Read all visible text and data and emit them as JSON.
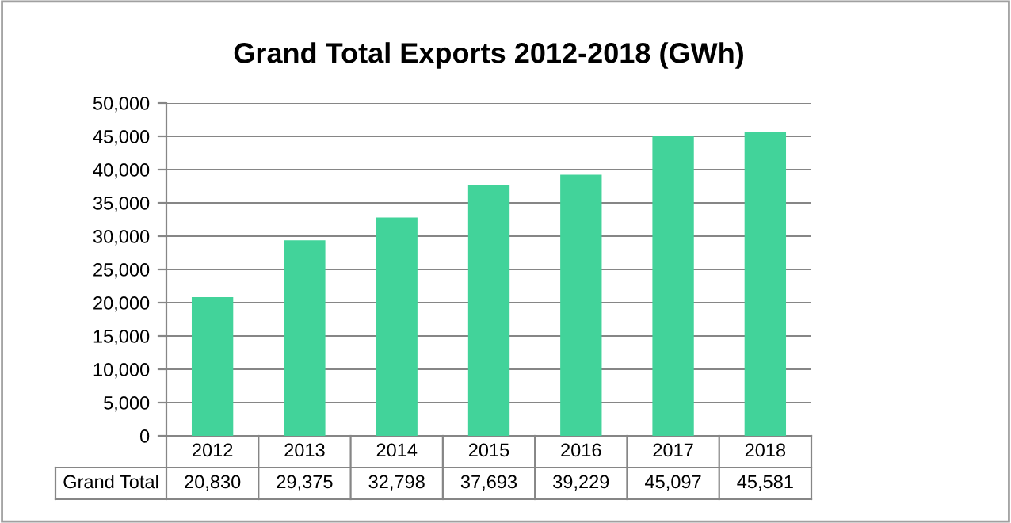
{
  "chart_data": {
    "type": "bar",
    "title": "Grand Total Exports 2012-2018 (GWh)",
    "categories": [
      "2012",
      "2013",
      "2014",
      "2015",
      "2016",
      "2017",
      "2018"
    ],
    "series": [
      {
        "name": "Grand Total",
        "color": "#42d39a",
        "values": [
          20830,
          29375,
          32798,
          37693,
          39229,
          45097,
          45581
        ],
        "value_labels": [
          "20,830",
          "29,375",
          "32,798",
          "37,693",
          "39,229",
          "45,097",
          "45,581"
        ]
      }
    ],
    "ylim": [
      0,
      50000
    ],
    "yticks": [
      {
        "value": 0,
        "label": "0"
      },
      {
        "value": 5000,
        "label": "5,000"
      },
      {
        "value": 10000,
        "label": "10,000"
      },
      {
        "value": 15000,
        "label": "15,000"
      },
      {
        "value": 20000,
        "label": "20,000"
      },
      {
        "value": 25000,
        "label": "25,000"
      },
      {
        "value": 30000,
        "label": "30,000"
      },
      {
        "value": 35000,
        "label": "35,000"
      },
      {
        "value": 40000,
        "label": "40,000"
      },
      {
        "value": 45000,
        "label": "45,000"
      },
      {
        "value": 50000,
        "label": "50,000"
      }
    ],
    "grid": "y"
  }
}
